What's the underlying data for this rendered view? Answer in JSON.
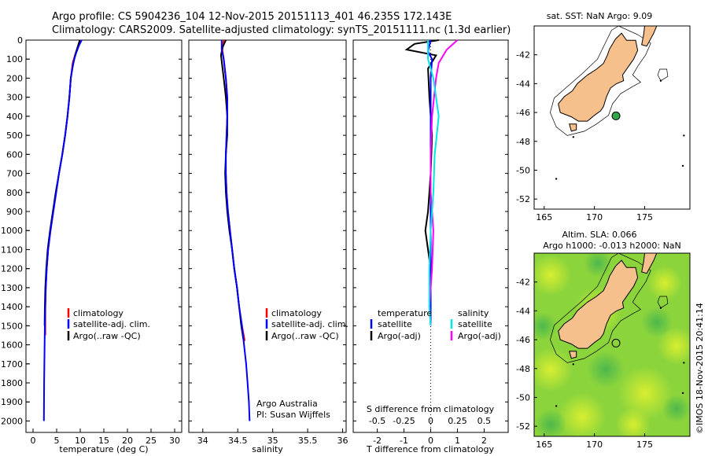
{
  "header": {
    "line1": "Argo profile: CS 5904236_104 12-Nov-2015 20151113_401 46.235S 172.143E",
    "line2": "Climatology: CARS2009. Satellite-adjusted climatology: synTS_20151111.nc (1.3d earlier)"
  },
  "depth_axis": {
    "ticks": [
      0,
      100,
      200,
      300,
      400,
      500,
      600,
      700,
      800,
      900,
      1000,
      1100,
      1200,
      1300,
      1400,
      1500,
      1600,
      1700,
      1800,
      1900,
      2000
    ],
    "range": [
      0,
      2060
    ]
  },
  "chart_data": [
    {
      "type": "line",
      "id": "temperature",
      "xlabel": "temperature (deg C)",
      "xticks": [
        0,
        5,
        10,
        15,
        20,
        25,
        30
      ],
      "xlim": [
        -1.5,
        31.5
      ],
      "legend": [
        "climatology",
        "satellite-adj. clim.",
        "Argo(..raw -QC)"
      ],
      "series": [
        {
          "name": "climatology",
          "color": "#ff0000",
          "x": [
            10.1,
            9.6,
            9.0,
            8.4,
            8.0,
            7.7,
            7.3,
            6.8,
            6.2,
            5.5,
            4.9,
            4.3,
            3.7,
            3.2,
            2.9,
            2.7,
            2.6,
            2.6
          ],
          "y": [
            0,
            30,
            70,
            120,
            200,
            300,
            400,
            500,
            600,
            700,
            800,
            900,
            1000,
            1100,
            1200,
            1300,
            1400,
            1550
          ]
        },
        {
          "name": "Argo(..raw -QC)",
          "color": "#000000",
          "x": [
            9.9,
            9.4,
            8.9,
            8.4,
            8.0,
            7.7,
            7.3,
            6.8,
            6.2,
            5.5,
            4.8,
            4.2,
            3.6,
            3.1,
            2.8,
            2.6,
            2.5,
            2.45
          ],
          "y": [
            0,
            40,
            80,
            140,
            200,
            300,
            400,
            500,
            600,
            700,
            800,
            900,
            1000,
            1100,
            1200,
            1300,
            1400,
            1500
          ]
        },
        {
          "name": "satellite-adj. clim.",
          "color": "#0000ff",
          "x": [
            10.3,
            9.7,
            9.1,
            8.5,
            8.0,
            7.7,
            7.3,
            6.8,
            6.2,
            5.5,
            4.9,
            4.3,
            3.7,
            3.2,
            2.9,
            2.7,
            2.6,
            2.5,
            2.45,
            2.4,
            2.35,
            2.3
          ],
          "y": [
            0,
            30,
            70,
            120,
            200,
            300,
            400,
            500,
            600,
            700,
            800,
            900,
            1000,
            1100,
            1200,
            1300,
            1400,
            1500,
            1600,
            1700,
            1800,
            2000
          ]
        }
      ]
    },
    {
      "type": "line",
      "id": "salinity",
      "xlabel": "salinity",
      "xticks": [
        34,
        34.5,
        35,
        35.5,
        36
      ],
      "xlim": [
        33.8,
        36.05
      ],
      "legend": [
        "climatology",
        "satellite-adj. clim.",
        "Argo(..raw -QC)"
      ],
      "credit": [
        "Argo Australia",
        "PI: Susan Wijffels"
      ],
      "series": [
        {
          "name": "climatology",
          "color": "#ff0000",
          "x": [
            34.3,
            34.28,
            34.3,
            34.33,
            34.35,
            34.35,
            34.34,
            34.33,
            34.33,
            34.34,
            34.36,
            34.39,
            34.42,
            34.45,
            34.49,
            34.52,
            34.56,
            34.6
          ],
          "y": [
            0,
            50,
            100,
            200,
            300,
            400,
            500,
            600,
            700,
            800,
            900,
            1000,
            1100,
            1200,
            1300,
            1400,
            1500,
            1580
          ]
        },
        {
          "name": "Argo(..raw -QC)",
          "color": "#000000",
          "x": [
            34.33,
            34.28,
            34.26,
            34.3,
            34.33,
            34.35,
            34.35,
            34.33,
            34.32,
            34.33,
            34.35,
            34.38,
            34.42,
            34.45,
            34.49,
            34.52,
            34.55,
            34.58
          ],
          "y": [
            0,
            40,
            80,
            200,
            300,
            400,
            500,
            600,
            700,
            800,
            900,
            1000,
            1100,
            1200,
            1300,
            1400,
            1500,
            1570
          ]
        },
        {
          "name": "satellite-adj. clim.",
          "color": "#0000ff",
          "x": [
            34.27,
            34.27,
            34.3,
            34.33,
            34.35,
            34.35,
            34.34,
            34.33,
            34.33,
            34.34,
            34.36,
            34.39,
            34.42,
            34.45,
            34.49,
            34.52,
            34.56,
            34.59,
            34.62,
            34.64,
            34.66,
            34.67
          ],
          "y": [
            0,
            50,
            100,
            200,
            300,
            400,
            500,
            600,
            700,
            800,
            900,
            1000,
            1100,
            1200,
            1300,
            1400,
            1500,
            1600,
            1700,
            1800,
            1900,
            2000
          ]
        }
      ]
    },
    {
      "type": "line",
      "id": "difference",
      "xlabel_bottom": "T difference from climatology",
      "xlabel_top": "S difference from climatology",
      "xticks_T": [
        -2,
        -1,
        0,
        1,
        2
      ],
      "xticks_S": [
        "-0.5",
        "-0.25",
        "0",
        "0.25",
        "0.5"
      ],
      "xticks_S_pos": [
        -2,
        -1,
        0,
        1,
        2
      ],
      "xlim": [
        -2.9,
        2.9
      ],
      "legend_temperature": {
        "title": "temperature",
        "items": [
          "satellite",
          "Argo(-adj)"
        ]
      },
      "legend_salinity": {
        "title": "salinity",
        "items": [
          "satellite",
          "Argo(-adj)"
        ]
      },
      "series": [
        {
          "name": "T Argo(-adj)",
          "color": "#000000",
          "x": [
            0.3,
            -0.6,
            -0.9,
            0.2,
            -0.1,
            -0.05,
            0.05,
            0.0,
            -0.05,
            -0.1,
            -0.2,
            -0.1,
            0.0,
            0.0,
            0.0
          ],
          "y": [
            0,
            20,
            50,
            80,
            150,
            300,
            500,
            700,
            800,
            900,
            1000,
            1100,
            1200,
            1300,
            1400
          ]
        },
        {
          "name": "T satellite",
          "color": "#0000ff",
          "x": [
            0.0,
            -0.1,
            0.05,
            0.0,
            0.0,
            0.0,
            0.0,
            0.0,
            0.0,
            0.0,
            0.0
          ],
          "y": [
            0,
            60,
            100,
            200,
            400,
            600,
            800,
            1000,
            1200,
            1400,
            1500
          ]
        },
        {
          "name": "S Argo(-adj)",
          "color": "#ff00ff",
          "x": [
            1.0,
            0.6,
            0.3,
            0.2,
            0.05,
            0.0,
            0.0,
            0.1,
            0.05,
            -0.05,
            0.0
          ],
          "y": [
            0,
            50,
            120,
            200,
            400,
            600,
            800,
            1000,
            1200,
            1400,
            1500
          ]
        },
        {
          "name": "S satellite",
          "color": "#00e5e5",
          "x": [
            -0.1,
            -0.1,
            0.1,
            0.2,
            0.3,
            0.15,
            0.1,
            0.0,
            -0.05,
            -0.05,
            0.0
          ],
          "y": [
            0,
            100,
            200,
            300,
            400,
            600,
            800,
            1000,
            1200,
            1400,
            1500
          ]
        }
      ]
    },
    {
      "type": "map",
      "id": "sst",
      "title": "sat. SST: NaN Argo: 9.09",
      "xticks": [
        165,
        170,
        175
      ],
      "yticks": [
        -42,
        -44,
        -46,
        -48,
        -50,
        -52
      ],
      "xlim": [
        164,
        179.5
      ],
      "ylim": [
        -52.7,
        -40
      ],
      "float": {
        "lon": 172.143,
        "lat": -46.235
      }
    },
    {
      "type": "map",
      "id": "sla",
      "title1": "Altim. SLA: 0.066",
      "title2": "Argo h1000: -0.013 h2000: NaN",
      "xticks": [
        165,
        170,
        175
      ],
      "yticks": [
        -42,
        -44,
        -46,
        -48,
        -50,
        -52
      ],
      "xlim": [
        164,
        179.5
      ],
      "ylim": [
        -52.7,
        -40
      ],
      "float": {
        "lon": 172.143,
        "lat": -46.235
      }
    }
  ],
  "watermark": "©IMOS 18-Nov-2015 20:41:14"
}
